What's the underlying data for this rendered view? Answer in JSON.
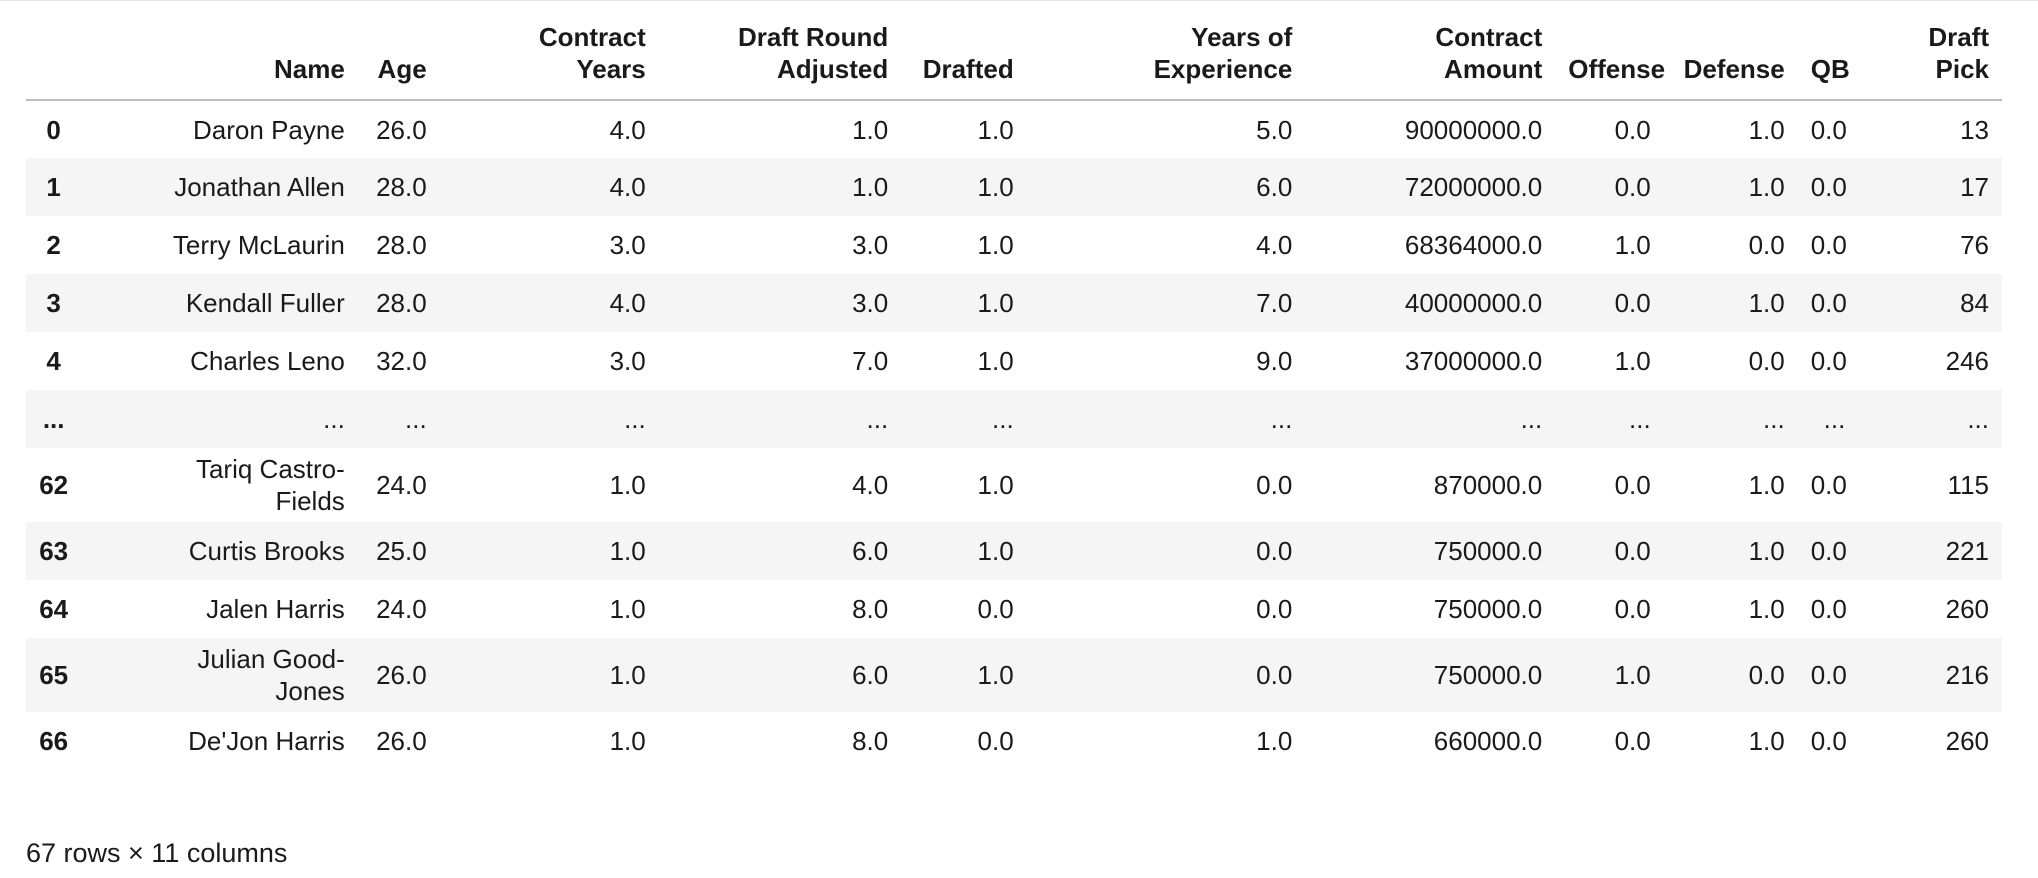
{
  "table": {
    "columns": [
      "",
      "Name",
      "Age",
      "Contract Years",
      "Draft Round Adjusted",
      "Drafted",
      "Years of Experience",
      "Contract Amount",
      "Offense",
      "Defense",
      "QB",
      "Draft Pick"
    ],
    "header_lines": [
      [
        "",
        ""
      ],
      [
        "",
        "Name"
      ],
      [
        "",
        "Age"
      ],
      [
        "Contract",
        "Years"
      ],
      [
        "Draft Round",
        "Adjusted"
      ],
      [
        "",
        "Drafted"
      ],
      [
        "Years of",
        "Experience"
      ],
      [
        "Contract",
        "Amount"
      ],
      [
        "",
        "Offense"
      ],
      [
        "",
        "Defense"
      ],
      [
        "",
        "QB"
      ],
      [
        "Draft",
        "Pick"
      ]
    ],
    "rows": [
      {
        "index": "0",
        "cells": [
          "Daron Payne",
          "26.0",
          "4.0",
          "1.0",
          "1.0",
          "5.0",
          "90000000.0",
          "0.0",
          "1.0",
          "0.0",
          "13"
        ]
      },
      {
        "index": "1",
        "cells": [
          "Jonathan Allen",
          "28.0",
          "4.0",
          "1.0",
          "1.0",
          "6.0",
          "72000000.0",
          "0.0",
          "1.0",
          "0.0",
          "17"
        ]
      },
      {
        "index": "2",
        "cells": [
          "Terry McLaurin",
          "28.0",
          "3.0",
          "3.0",
          "1.0",
          "4.0",
          "68364000.0",
          "1.0",
          "0.0",
          "0.0",
          "76"
        ]
      },
      {
        "index": "3",
        "cells": [
          "Kendall Fuller",
          "28.0",
          "4.0",
          "3.0",
          "1.0",
          "7.0",
          "40000000.0",
          "0.0",
          "1.0",
          "0.0",
          "84"
        ]
      },
      {
        "index": "4",
        "cells": [
          "Charles Leno",
          "32.0",
          "3.0",
          "7.0",
          "1.0",
          "9.0",
          "37000000.0",
          "1.0",
          "0.0",
          "0.0",
          "246"
        ]
      },
      {
        "index": "...",
        "cells": [
          "...",
          "...",
          "...",
          "...",
          "...",
          "...",
          "...",
          "...",
          "...",
          "...",
          "..."
        ]
      },
      {
        "index": "62",
        "name_lines": [
          "Tariq Castro-",
          "Fields"
        ],
        "cells": [
          "Tariq Castro-Fields",
          "24.0",
          "1.0",
          "4.0",
          "1.0",
          "0.0",
          "870000.0",
          "0.0",
          "1.0",
          "0.0",
          "115"
        ]
      },
      {
        "index": "63",
        "cells": [
          "Curtis Brooks",
          "25.0",
          "1.0",
          "6.0",
          "1.0",
          "0.0",
          "750000.0",
          "0.0",
          "1.0",
          "0.0",
          "221"
        ]
      },
      {
        "index": "64",
        "cells": [
          "Jalen Harris",
          "24.0",
          "1.0",
          "8.0",
          "0.0",
          "0.0",
          "750000.0",
          "0.0",
          "1.0",
          "0.0",
          "260"
        ]
      },
      {
        "index": "65",
        "name_lines": [
          "Julian Good-",
          "Jones"
        ],
        "cells": [
          "Julian Good-Jones",
          "26.0",
          "1.0",
          "6.0",
          "1.0",
          "0.0",
          "750000.0",
          "1.0",
          "0.0",
          "0.0",
          "216"
        ]
      },
      {
        "index": "66",
        "cells": [
          "De'Jon Harris",
          "26.0",
          "1.0",
          "8.0",
          "0.0",
          "1.0",
          "660000.0",
          "0.0",
          "1.0",
          "0.0",
          "260"
        ]
      }
    ],
    "footer": "67 rows × 11 columns"
  },
  "colors": {
    "stripe": "#f5f5f5",
    "header_rule": "#bdbdbd",
    "text": "#1a1a1a"
  }
}
